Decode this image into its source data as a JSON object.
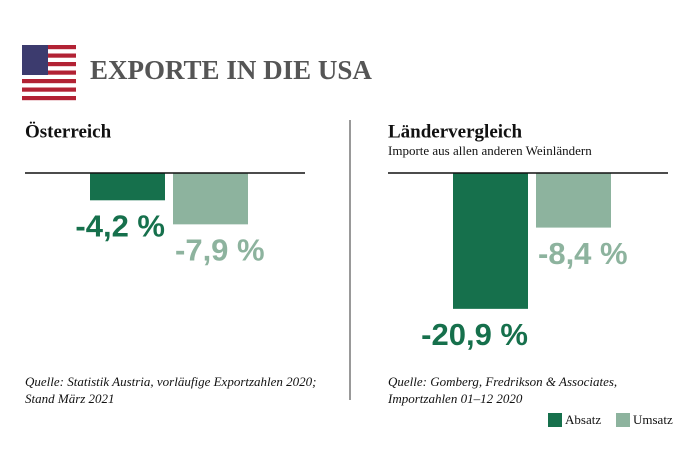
{
  "title": "EXPORTE IN DIE USA",
  "legend": {
    "position": "bottom-right",
    "items": [
      {
        "name": "Absatz",
        "color": "#16704c"
      },
      {
        "name": "Umsatz",
        "color": "#8db39e"
      }
    ]
  },
  "chart_data": [
    {
      "type": "bar",
      "title": "Österreich",
      "values": [
        -4.2,
        -7.9
      ],
      "value_labels": [
        "-4,2 %",
        "-7,9 %"
      ],
      "ylim": [
        -22,
        0
      ],
      "source": [
        "Quelle: Statistik Austria, vorläufige Exportzahlen 2020;",
        "Stand März 2021"
      ]
    },
    {
      "type": "bar",
      "title": "Ländervergleich",
      "subtitle": "Importe aus allen anderen Weinländern",
      "values": [
        -20.9,
        -8.4
      ],
      "value_labels": [
        "-20,9 %",
        "-8,4 %"
      ],
      "ylim": [
        -22,
        0
      ],
      "source": [
        "Quelle: Gomberg, Fredrikson & Associates,",
        "Importzahlen 01–12 2020"
      ]
    }
  ]
}
